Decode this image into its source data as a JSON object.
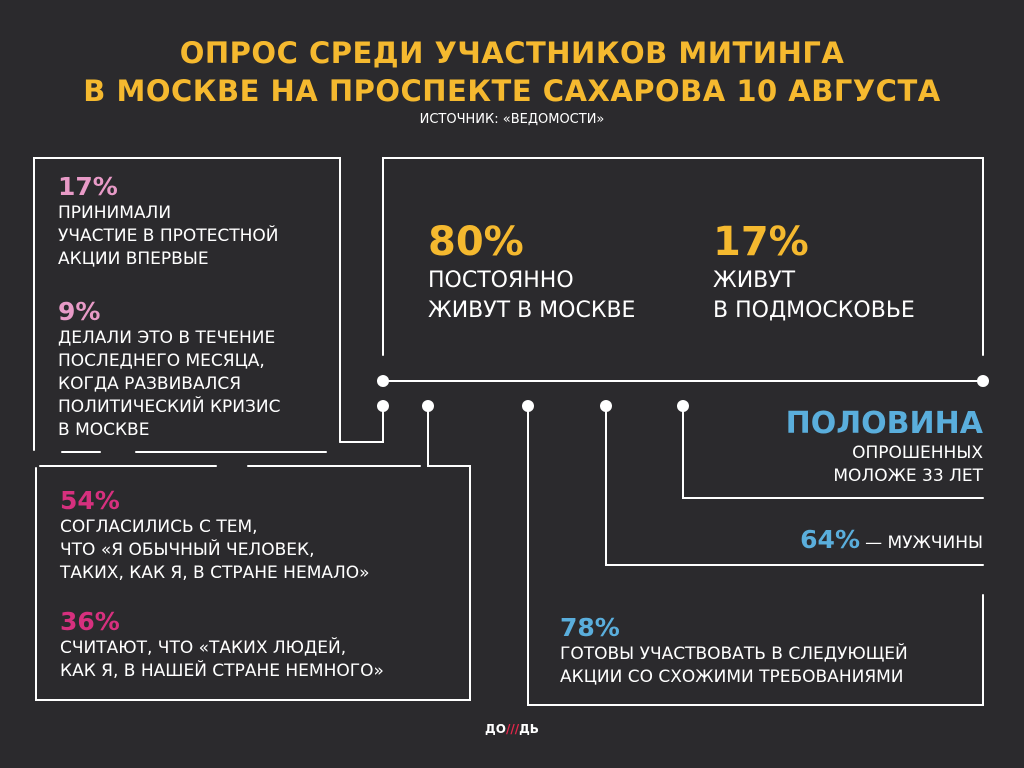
{
  "header": {
    "title_line1": "ОПРОС СРЕДИ УЧАСТНИКОВ МИТИНГА",
    "title_line2": "В МОСКВЕ НА ПРОСПЕКТЕ САХАРОВА 10 АВГУСТА",
    "source": "ИСТОЧНИК: «ВЕДОМОСТИ»"
  },
  "colors": {
    "background": "#2b2a2d",
    "title": "#f5b92f",
    "pink_light": "#e89ac7",
    "pink": "#d6307e",
    "blue": "#5aaedc"
  },
  "box_protest": {
    "stat1_value": "17%",
    "stat1_text": [
      "ПРИНИМАЛИ",
      "УЧАСТИЕ В ПРОТЕСТНОЙ",
      "АКЦИИ ВПЕРВЫЕ"
    ],
    "stat2_value": "9%",
    "stat2_text": [
      "ДЕЛАЛИ ЭТО В ТЕЧЕНИЕ",
      "ПОСЛЕДНЕГО МЕСЯЦА,",
      "КОГДА РАЗВИВАЛСЯ",
      "ПОЛИТИЧЕСКИЙ КРИЗИС",
      "В МОСКВЕ"
    ]
  },
  "box_residence": {
    "stat1_value": "80%",
    "stat1_text": [
      "ПОСТОЯННО",
      "ЖИВУТ В МОСКВЕ"
    ],
    "stat2_value": "17%",
    "stat2_text": [
      "ЖИВУТ",
      "В ПОДМОСКОВЬЕ"
    ]
  },
  "box_opinion": {
    "stat1_value": "54%",
    "stat1_text": [
      "СОГЛАСИЛИСЬ С ТЕМ,",
      "ЧТО «Я ОБЫЧНЫЙ ЧЕЛОВЕК,",
      "ТАКИХ, КАК Я, В СТРАНЕ НЕМАЛО»"
    ],
    "stat2_value": "36%",
    "stat2_text": [
      "СЧИТАЮТ, ЧТО «ТАКИХ ЛЮДЕЙ,",
      "КАК Я, В НАШЕЙ СТРАНЕ НЕМНОГО»"
    ]
  },
  "age": {
    "value": "ПОЛОВИНА",
    "text": [
      "ОПРОШЕННЫХ",
      "МОЛОЖЕ 33 ЛЕТ"
    ]
  },
  "gender": {
    "value": "64%",
    "text": "— МУЖЧИНЫ"
  },
  "future": {
    "value": "78%",
    "text": [
      "ГОТОВЫ УЧАСТВОВАТЬ В СЛЕДУЮЩЕЙ",
      "АКЦИИ СО СХОЖИМИ ТРЕБОВАНИЯМИ"
    ]
  },
  "logo": {
    "left": "ДО",
    "mark": "///",
    "right": "ДЬ"
  }
}
